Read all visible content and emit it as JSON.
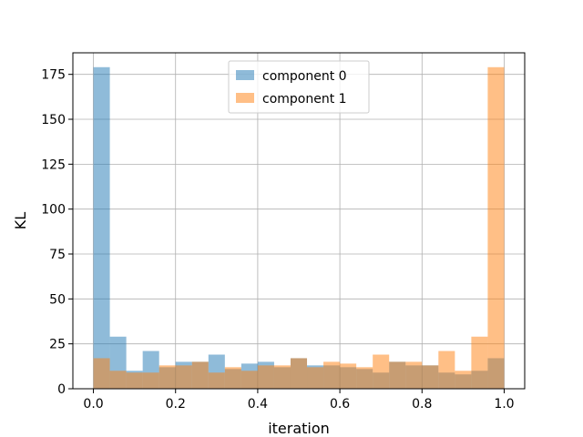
{
  "chart_data": {
    "type": "histogram",
    "xlabel": "iteration",
    "ylabel": "KL",
    "xlim": [
      -0.05,
      1.05
    ],
    "ylim": [
      0,
      187
    ],
    "xticks": [
      0.0,
      0.2,
      0.4,
      0.6,
      0.8,
      1.0
    ],
    "xtick_labels": [
      "0.0",
      "0.2",
      "0.4",
      "0.6",
      "0.8",
      "1.0"
    ],
    "yticks": [
      0,
      25,
      50,
      75,
      100,
      125,
      150,
      175
    ],
    "ytick_labels": [
      "0",
      "25",
      "50",
      "75",
      "100",
      "125",
      "150",
      "175"
    ],
    "grid": true,
    "legend_position": "top-center",
    "bin_edges": [
      0.0,
      0.04,
      0.08,
      0.12,
      0.16,
      0.2,
      0.24,
      0.28,
      0.32,
      0.36,
      0.4,
      0.44,
      0.48,
      0.52,
      0.56,
      0.6,
      0.64,
      0.68,
      0.72,
      0.76,
      0.8,
      0.84,
      0.88,
      0.92,
      0.96,
      1.0
    ],
    "series": [
      {
        "name": "component 0",
        "color": "#1f77b4",
        "values": [
          179,
          29,
          10,
          21,
          12,
          15,
          15,
          19,
          11,
          14,
          15,
          12,
          17,
          13,
          13,
          12,
          11,
          9,
          15,
          13,
          13,
          9,
          8,
          10,
          17
        ]
      },
      {
        "name": "component 1",
        "color": "#ff7f0e",
        "values": [
          17,
          10,
          9,
          9,
          13,
          13,
          15,
          9,
          12,
          10,
          13,
          13,
          17,
          12,
          15,
          14,
          12,
          19,
          15,
          15,
          13,
          21,
          10,
          29,
          179
        ]
      }
    ]
  }
}
